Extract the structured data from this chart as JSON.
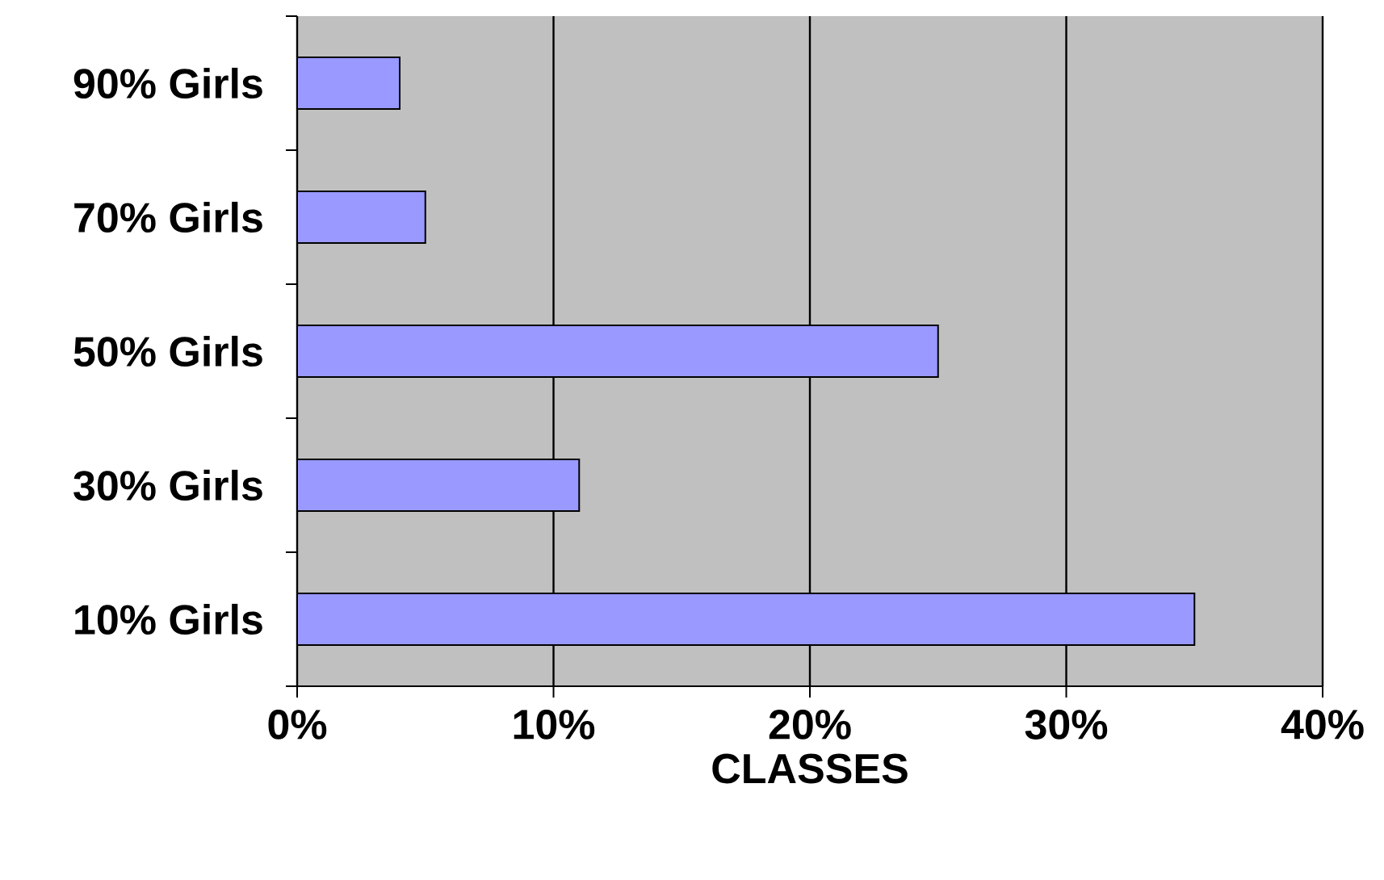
{
  "chart_data": {
    "type": "bar",
    "orientation": "horizontal",
    "xlabel": "CLASSES",
    "categories": [
      "90% Girls",
      "70% Girls",
      "50% Girls",
      "30% Girls",
      "10% Girls"
    ],
    "values": [
      4,
      5,
      25,
      11,
      35
    ],
    "color": "#9999ff",
    "xlim": [
      0,
      40
    ],
    "xticks": [
      {
        "value": 0,
        "label": "0%"
      },
      {
        "value": 10,
        "label": "10%"
      },
      {
        "value": 20,
        "label": "20%"
      },
      {
        "value": 30,
        "label": "30%"
      },
      {
        "value": 40,
        "label": "40%"
      }
    ],
    "grid": "x"
  }
}
